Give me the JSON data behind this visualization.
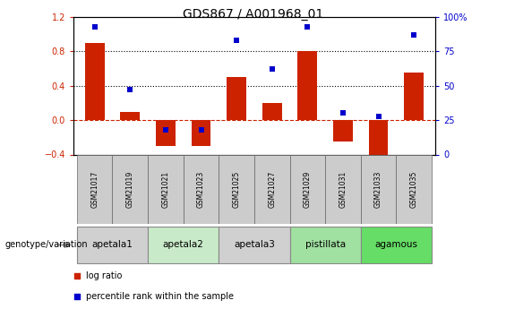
{
  "title": "GDS867 / A001968_01",
  "samples": [
    "GSM21017",
    "GSM21019",
    "GSM21021",
    "GSM21023",
    "GSM21025",
    "GSM21027",
    "GSM21029",
    "GSM21031",
    "GSM21033",
    "GSM21035"
  ],
  "log_ratio": [
    0.9,
    0.1,
    -0.3,
    -0.3,
    0.5,
    0.2,
    0.8,
    -0.25,
    -0.4,
    0.55
  ],
  "percentile": [
    93,
    47,
    18,
    18,
    83,
    62,
    93,
    30,
    28,
    87
  ],
  "bar_color": "#cc2200",
  "dot_color": "#0000cc",
  "ylim_left": [
    -0.4,
    1.2
  ],
  "ylim_right": [
    0,
    100
  ],
  "yticks_left": [
    -0.4,
    0.0,
    0.4,
    0.8,
    1.2
  ],
  "yticks_right": [
    0,
    25,
    50,
    75,
    100
  ],
  "ytick_labels_right": [
    "0",
    "25",
    "50",
    "75",
    "100%"
  ],
  "dotted_lines": [
    0.4,
    0.8
  ],
  "groups": [
    {
      "label": "apetala1",
      "samples": [
        "GSM21017",
        "GSM21019"
      ],
      "color": "#d0d0d0"
    },
    {
      "label": "apetala2",
      "samples": [
        "GSM21021",
        "GSM21023"
      ],
      "color": "#c8eac8"
    },
    {
      "label": "apetala3",
      "samples": [
        "GSM21025",
        "GSM21027"
      ],
      "color": "#d0d0d0"
    },
    {
      "label": "pistillata",
      "samples": [
        "GSM21029",
        "GSM21031"
      ],
      "color": "#a0e0a0"
    },
    {
      "label": "agamous",
      "samples": [
        "GSM21033",
        "GSM21035"
      ],
      "color": "#66dd66"
    }
  ],
  "genotype_label": "genotype/variation",
  "background_color": "#ffffff",
  "title_fontsize": 10,
  "axis_fontsize": 7,
  "sample_fontsize": 5.5,
  "group_fontsize": 7.5,
  "legend_fontsize": 7,
  "bar_width": 0.55
}
